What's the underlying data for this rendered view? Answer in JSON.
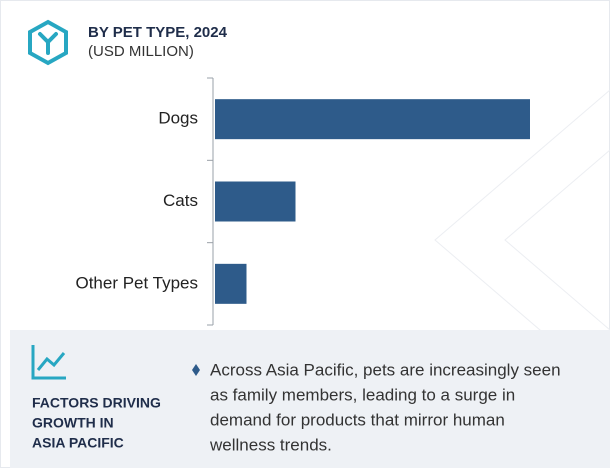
{
  "chart_data": {
    "type": "bar",
    "orientation": "horizontal",
    "title": "BY PET TYPE, 2024",
    "subtitle": "(USD MILLION)",
    "categories": [
      "Dogs",
      "Cats",
      "Other Pet Types"
    ],
    "values": [
      90,
      23,
      9
    ],
    "color": "#2e5b8a",
    "xlim": [
      0,
      100
    ]
  },
  "factors": {
    "heading": [
      "FACTORS DRIVING",
      "GROWTH IN",
      "ASIA PACIFIC"
    ],
    "bullet": [
      "Across Asia Pacific, pets are increasingly seen",
      "as family members, leading to a surge in",
      "demand for products that mirror human",
      "wellness trends."
    ]
  }
}
